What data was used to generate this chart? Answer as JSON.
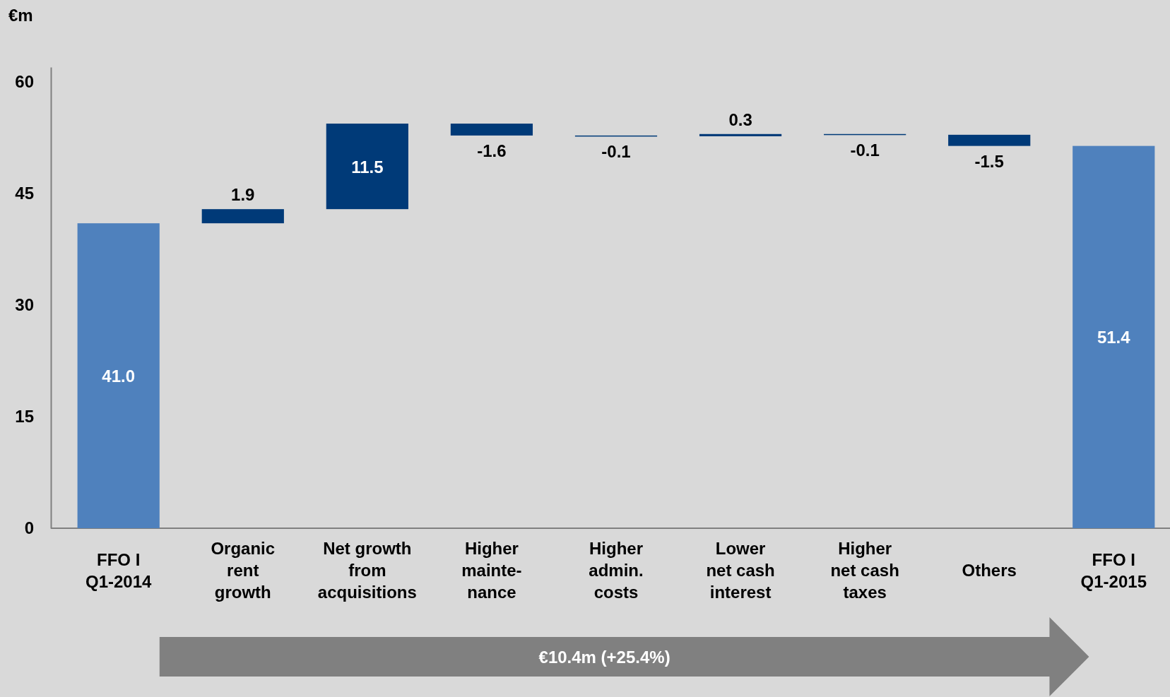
{
  "chart_data": {
    "type": "bar",
    "ylabel": "€m",
    "categories": [
      "FFO I\nQ1-2014",
      "Organic\nrent\ngrowth",
      "Net growth\nfrom\nacquisitions",
      "Higher\nmainte-\nnance",
      "Higher\nadmin.\ncosts",
      "Lower\nnet cash\ninterest",
      "Higher\nnet cash\ntaxes",
      "Others",
      "FFO I\nQ1-2015"
    ],
    "values": [
      41.0,
      1.9,
      11.5,
      -1.6,
      -0.1,
      0.3,
      -0.1,
      -1.5,
      51.4
    ],
    "base": [
      0,
      41.0,
      42.9,
      54.4,
      52.8,
      52.7,
      53.0,
      52.9,
      0
    ],
    "colors": [
      "#4f81bd",
      "#003a78",
      "#003a78",
      "#003a78",
      "#003a78",
      "#003a78",
      "#003a78",
      "#003a78",
      "#4f81bd"
    ],
    "value_labels": [
      "41.0",
      "1.9",
      "11.5",
      "-1.6",
      "-0.1",
      "0.3",
      "-0.1",
      "-1.5",
      "51.4"
    ],
    "ylim": [
      0,
      62
    ],
    "yticks": [
      0,
      15,
      30,
      45,
      60
    ],
    "annotations": [
      "€10.4m (+25.4%)"
    ]
  }
}
